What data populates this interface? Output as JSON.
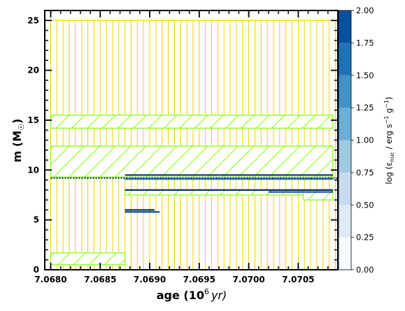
{
  "chart_data": {
    "type": "kippenhahn",
    "xlabel_main": "age (10",
    "xlabel_exp": "6",
    "xlabel_unit": "yr)",
    "ylabel_main": "m (M",
    "ylabel_sun": "☉",
    "ylabel_close": ")",
    "xlim": [
      7.06794,
      7.0709
    ],
    "ylim": [
      0,
      26
    ],
    "xticks": [
      7.068,
      7.0685,
      7.069,
      7.0695,
      7.07,
      7.0705
    ],
    "xtick_labels": [
      "7.0680",
      "7.0685",
      "7.0690",
      "7.0695",
      "7.0700",
      "7.0705"
    ],
    "yticks": [
      0,
      5,
      10,
      15,
      20,
      25
    ],
    "ytick_labels": [
      "0",
      "5",
      "10",
      "15",
      "20",
      "25"
    ],
    "colorbar": {
      "label_main": "log (ε",
      "label_sub": "nuc",
      "label_mid": " / erg s",
      "label_exp1": "−1",
      "label_mid2": " g",
      "label_exp2": "−1",
      "label_close": ")",
      "range": [
        0,
        2
      ],
      "levels": [
        0.0,
        0.25,
        0.5,
        0.75,
        1.0,
        1.25,
        1.5,
        1.75,
        2.0
      ],
      "tick_labels": [
        "0.00",
        "0.25",
        "0.50",
        "0.75",
        "1.00",
        "1.25",
        "1.50",
        "1.75",
        "2.00"
      ],
      "colors": [
        "#f7fbff",
        "#deebf7",
        "#c6dbef",
        "#9ecae1",
        "#6baed6",
        "#4292c6",
        "#2171b5",
        "#08519c",
        "#08306b"
      ]
    },
    "convective_region_top": 25.0,
    "convective_region_start": 7.068,
    "mixing_colors": {
      "convection": "#f0d000",
      "overshoot": "#7fff00",
      "burning_line": "#0a2a6e"
    },
    "hatched_bands": [
      {
        "x0": 7.068,
        "x1": 7.07085,
        "y0": 14.2,
        "y1": 15.5
      },
      {
        "x0": 7.068,
        "x1": 7.07085,
        "y0": 9.3,
        "y1": 12.4
      },
      {
        "x0": 7.068,
        "x1": 7.06875,
        "y0": 0.5,
        "y1": 1.7
      },
      {
        "x0": 7.06875,
        "x1": 7.07085,
        "y0": 7.5,
        "y1": 8.0
      },
      {
        "x0": 7.07055,
        "x1": 7.07085,
        "y0": 7.0,
        "y1": 8.0
      }
    ],
    "burning_lines": [
      {
        "x0": 7.06875,
        "x1": 7.07085,
        "y": 9.5,
        "value": 2.0
      },
      {
        "x0": 7.06875,
        "x1": 7.07085,
        "y": 9.1,
        "value": 1.6
      },
      {
        "x0": 7.06875,
        "x1": 7.07085,
        "y": 8.0,
        "value": 2.0
      },
      {
        "x0": 7.0702,
        "x1": 7.07085,
        "y": 7.8,
        "value": 1.8
      },
      {
        "x0": 7.06875,
        "x1": 7.06905,
        "y": 6.0,
        "value": 2.0
      },
      {
        "x0": 7.06875,
        "x1": 7.0691,
        "y": 5.8,
        "value": 1.8
      },
      {
        "x0": 7.0705,
        "x1": 7.0707,
        "y": 0.0,
        "value": 2.0
      }
    ],
    "dotted_line": {
      "x0": 7.068,
      "x1": 7.0709,
      "y": 9.2
    }
  }
}
